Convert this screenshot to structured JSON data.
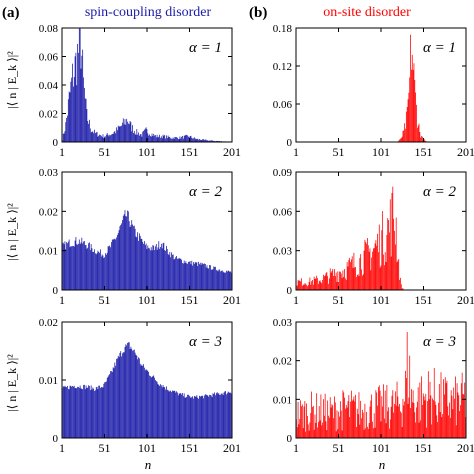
{
  "figure": {
    "panel_a_label": "(a)",
    "panel_b_label": "(b)",
    "col_a_title": "spin-coupling disorder",
    "col_b_title": "on-site disorder",
    "xlabel": "n",
    "ylabel": "|⟨ n | E_k ⟩|²",
    "colors": {
      "a": "#1a1aa8",
      "b": "#ff0000",
      "title_a": "#1a1aa8",
      "title_b": "#ff0000"
    }
  },
  "chart_data": [
    {
      "type": "bar",
      "column": "a",
      "row": 1,
      "annotation": "α = 1",
      "xlim": [
        1,
        201
      ],
      "xticks": [
        "1",
        "51",
        "101",
        "151",
        "201"
      ],
      "ylim": [
        0,
        0.08
      ],
      "yticks": [
        "0",
        "0.02",
        "0.04",
        "0.06",
        "0.08"
      ],
      "profile": [
        [
          1,
          0.002
        ],
        [
          5,
          0.012
        ],
        [
          9,
          0.03
        ],
        [
          13,
          0.045
        ],
        [
          17,
          0.055
        ],
        [
          20,
          0.064
        ],
        [
          23,
          0.07
        ],
        [
          26,
          0.04
        ],
        [
          30,
          0.018
        ],
        [
          35,
          0.009
        ],
        [
          40,
          0.006
        ],
        [
          50,
          0.004
        ],
        [
          60,
          0.006
        ],
        [
          65,
          0.008
        ],
        [
          72,
          0.012
        ],
        [
          78,
          0.016
        ],
        [
          82,
          0.011
        ],
        [
          88,
          0.007
        ],
        [
          95,
          0.005
        ],
        [
          100,
          0.008
        ],
        [
          105,
          0.006
        ],
        [
          112,
          0.004
        ],
        [
          120,
          0.004
        ],
        [
          130,
          0.003
        ],
        [
          140,
          0.003
        ],
        [
          150,
          0.004
        ],
        [
          160,
          0.002
        ],
        [
          175,
          0.001
        ],
        [
          190,
          0.0005
        ],
        [
          201,
          0.0003
        ]
      ],
      "noise": 0.35
    },
    {
      "type": "bar",
      "column": "a",
      "row": 2,
      "annotation": "α = 2",
      "xlim": [
        1,
        201
      ],
      "xticks": [
        "1",
        "51",
        "101",
        "151",
        "201"
      ],
      "ylim": [
        0,
        0.03
      ],
      "yticks": [
        "0",
        "0.01",
        "0.02",
        "0.03"
      ],
      "profile": [
        [
          1,
          0.011
        ],
        [
          10,
          0.012
        ],
        [
          20,
          0.0125
        ],
        [
          30,
          0.0115
        ],
        [
          40,
          0.01
        ],
        [
          50,
          0.009
        ],
        [
          58,
          0.011
        ],
        [
          66,
          0.014
        ],
        [
          72,
          0.017
        ],
        [
          76,
          0.019
        ],
        [
          80,
          0.018
        ],
        [
          86,
          0.015
        ],
        [
          93,
          0.013
        ],
        [
          100,
          0.011
        ],
        [
          110,
          0.0105
        ],
        [
          118,
          0.012
        ],
        [
          125,
          0.01
        ],
        [
          135,
          0.008
        ],
        [
          150,
          0.007
        ],
        [
          165,
          0.0065
        ],
        [
          180,
          0.0055
        ],
        [
          190,
          0.005
        ],
        [
          201,
          0.0045
        ]
      ],
      "noise": 0.1
    },
    {
      "type": "bar",
      "column": "a",
      "row": 3,
      "annotation": "α = 3",
      "xlim": [
        1,
        201
      ],
      "xticks": [
        "1",
        "51",
        "101",
        "151",
        "201"
      ],
      "ylim": [
        0,
        0.02
      ],
      "yticks": [
        "0",
        "0.01",
        "0.02"
      ],
      "profile": [
        [
          1,
          0.0085
        ],
        [
          15,
          0.009
        ],
        [
          30,
          0.0088
        ],
        [
          40,
          0.0085
        ],
        [
          50,
          0.009
        ],
        [
          58,
          0.011
        ],
        [
          66,
          0.0135
        ],
        [
          74,
          0.0155
        ],
        [
          80,
          0.016
        ],
        [
          88,
          0.0145
        ],
        [
          95,
          0.0125
        ],
        [
          105,
          0.011
        ],
        [
          115,
          0.0095
        ],
        [
          125,
          0.0085
        ],
        [
          140,
          0.0075
        ],
        [
          155,
          0.007
        ],
        [
          170,
          0.0072
        ],
        [
          185,
          0.0076
        ],
        [
          201,
          0.008
        ]
      ],
      "noise": 0.05
    },
    {
      "type": "bar",
      "column": "b",
      "row": 1,
      "annotation": "α = 1",
      "xlim": [
        1,
        201
      ],
      "xticks": [
        "1",
        "51",
        "101",
        "151",
        "201"
      ],
      "ylim": [
        0,
        0.18
      ],
      "yticks": [
        "0",
        "0.06",
        "0.12",
        "0.18"
      ],
      "profile": [
        [
          1,
          0
        ],
        [
          120,
          0
        ],
        [
          124,
          0.004
        ],
        [
          128,
          0.015
        ],
        [
          132,
          0.04
        ],
        [
          135,
          0.09
        ],
        [
          137,
          0.16
        ],
        [
          139,
          0.12
        ],
        [
          141,
          0.08
        ],
        [
          144,
          0.04
        ],
        [
          147,
          0.015
        ],
        [
          150,
          0.006
        ],
        [
          153,
          0.002
        ],
        [
          156,
          0
        ],
        [
          201,
          0
        ]
      ],
      "noise": 0.45
    },
    {
      "type": "bar",
      "column": "b",
      "row": 2,
      "annotation": "α = 2",
      "xlim": [
        1,
        201
      ],
      "xticks": [
        "1",
        "51",
        "101",
        "151",
        "201"
      ],
      "ylim": [
        0,
        0.09
      ],
      "yticks": [
        "0",
        "0.03",
        "0.06",
        "0.09"
      ],
      "profile": [
        [
          1,
          0.006
        ],
        [
          15,
          0.006
        ],
        [
          30,
          0.008
        ],
        [
          45,
          0.012
        ],
        [
          60,
          0.016
        ],
        [
          75,
          0.022
        ],
        [
          88,
          0.028
        ],
        [
          98,
          0.035
        ],
        [
          106,
          0.042
        ],
        [
          112,
          0.05
        ],
        [
          116,
          0.058
        ],
        [
          119,
          0.048
        ],
        [
          122,
          0.02
        ],
        [
          125,
          0.003
        ],
        [
          128,
          0
        ],
        [
          201,
          0
        ]
      ],
      "noise": 0.55
    },
    {
      "type": "bar",
      "column": "b",
      "row": 3,
      "annotation": "α = 3",
      "xlim": [
        1,
        201
      ],
      "xticks": [
        "1",
        "51",
        "101",
        "151",
        "201"
      ],
      "ylim": [
        0,
        0.03
      ],
      "yticks": [
        "0",
        "0.01",
        "0.02",
        "0.03"
      ],
      "profile": [
        [
          1,
          0.006
        ],
        [
          20,
          0.007
        ],
        [
          40,
          0.0065
        ],
        [
          60,
          0.0075
        ],
        [
          80,
          0.007
        ],
        [
          100,
          0.008
        ],
        [
          115,
          0.008
        ],
        [
          125,
          0.009
        ],
        [
          130,
          0.012
        ],
        [
          133,
          0.02
        ],
        [
          136,
          0.012
        ],
        [
          140,
          0.009
        ],
        [
          150,
          0.01
        ],
        [
          160,
          0.011
        ],
        [
          170,
          0.01
        ],
        [
          185,
          0.009
        ],
        [
          201,
          0.01
        ]
      ],
      "noise": 0.75
    }
  ]
}
